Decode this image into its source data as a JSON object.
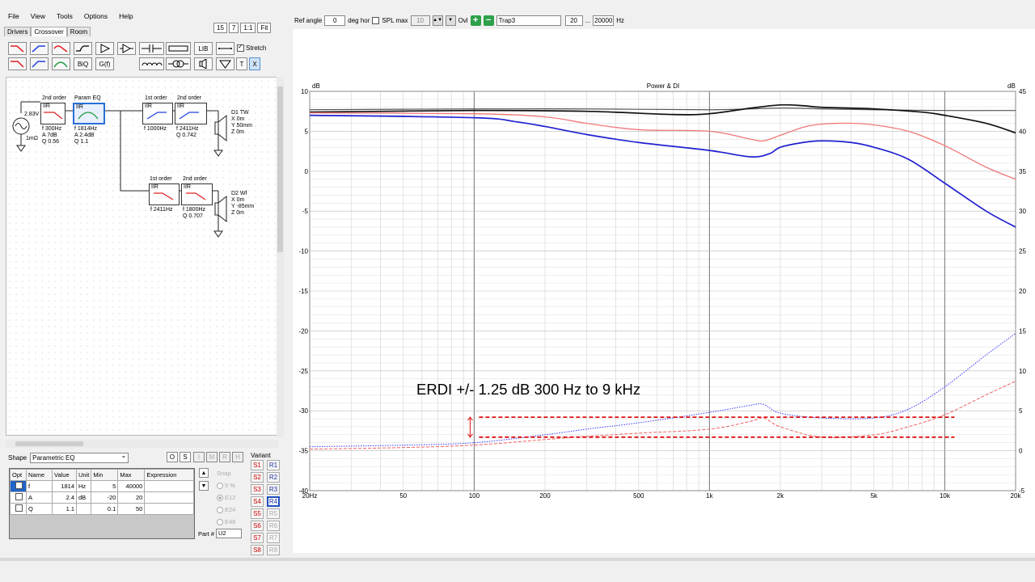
{
  "menu": [
    "File",
    "View",
    "Tools",
    "Options",
    "Help"
  ],
  "tabs": [
    "Drivers",
    "Crossover",
    "Room"
  ],
  "zoom_buttons": [
    "15",
    "7",
    "1:1",
    "Fit"
  ],
  "toolbar": {
    "lib": "LIB",
    "biq": "BiQ",
    "gf": "G(f)",
    "t": "T",
    "x": "X",
    "stretch": "Stretch"
  },
  "schematic": {
    "source": {
      "voltage": "2.83V",
      "resistance": "1mΩ"
    },
    "tw_path": [
      {
        "order": "2nd order",
        "type": "IIR",
        "params": [
          "f  300Hz",
          "A  7dB",
          "Q 0.56"
        ]
      },
      {
        "order": "Param EQ",
        "type": "IIR",
        "params": [
          "f  1814Hz",
          "A  2.4dB",
          "Q  1.1"
        ]
      },
      {
        "order": "1st order",
        "type": "IIR",
        "params": [
          "f  1000Hz"
        ]
      },
      {
        "order": "2nd order",
        "type": "IIR",
        "params": [
          "f  2411Hz",
          "Q  0.742"
        ]
      }
    ],
    "tw_driver": {
      "name": "D1 TW",
      "params": [
        "X 0m",
        "Y 50mm",
        "Z 0m"
      ]
    },
    "wf_path": [
      {
        "order": "1st order",
        "type": "IIR",
        "params": [
          "f  2411Hz"
        ]
      },
      {
        "order": "2nd order",
        "type": "IIR",
        "params": [
          "f  1800Hz",
          "Q  0.707"
        ]
      }
    ],
    "wf_driver": {
      "name": "D2 Wf",
      "params": [
        "X 0m",
        "Y -85mm",
        "Z 0m"
      ]
    }
  },
  "shape": {
    "label": "Shape",
    "value": "Parametric EQ",
    "buttons": [
      "O",
      "S",
      "I",
      "M",
      "R",
      "H"
    ]
  },
  "params_table": {
    "headers": [
      "Opt",
      "Name",
      "Value",
      "Unit",
      "Min",
      "Max",
      "Expression"
    ],
    "rows": [
      {
        "name": "f",
        "value": "1814",
        "unit": "Hz",
        "min": "5",
        "max": "40000",
        "expr": ""
      },
      {
        "name": "A",
        "value": "2.4",
        "unit": "dB",
        "min": "-20",
        "max": "20",
        "expr": ""
      },
      {
        "name": "Q",
        "value": "1.1",
        "unit": "",
        "min": "0.1",
        "max": "50",
        "expr": ""
      }
    ]
  },
  "snap": {
    "label": "Snap",
    "options": [
      "5 %",
      "E12",
      "E24",
      "E48"
    ]
  },
  "part": {
    "label": "Part #",
    "value": "U2"
  },
  "variant": {
    "label": "Variant",
    "s": [
      "S1",
      "S2",
      "S3",
      "S4",
      "S5",
      "S6",
      "S7",
      "S8"
    ],
    "r": [
      "R1",
      "R2",
      "R3",
      "R4",
      "R5",
      "R6",
      "R7",
      "R8"
    ]
  },
  "topbar": {
    "ref_angle_label": "Ref angle",
    "ref_angle": "0",
    "deg_hor": "deg hor",
    "spl_max": "SPL max",
    "spl_val": "10",
    "ovl": "Ovl",
    "trace_name": "Trap3",
    "f_min": "20",
    "dots": "...",
    "f_max": "20000",
    "hz": "Hz"
  },
  "colors": {
    "blue": "#2020d0",
    "red": "#f07878",
    "black": "#101010",
    "gray": "#555555",
    "annot": "#dd1111"
  },
  "chart_data": {
    "type": "line",
    "title": "Power & DI",
    "ylabel_left": "dB",
    "ylabel_right": "dB",
    "x_scale": "log",
    "xlim": [
      20,
      20000
    ],
    "ylim_left": [
      -40,
      10
    ],
    "ylim_right": [
      -5,
      45
    ],
    "x_ticks": [
      "20Hz",
      "50",
      "100",
      "200",
      "500",
      "1k",
      "2k",
      "5k",
      "10k",
      "20k"
    ],
    "x_tick_values": [
      20,
      50,
      100,
      200,
      500,
      1000,
      2000,
      5000,
      10000,
      20000
    ],
    "y_ticks_left": [
      10,
      5,
      0,
      -5,
      -10,
      -15,
      -20,
      -25,
      -30,
      -35,
      -40
    ],
    "y_ticks_right": [
      45,
      40,
      35,
      30,
      25,
      20,
      15,
      10,
      5,
      0,
      -5
    ],
    "grid": true,
    "annotation": "ERDI +/- 1.25 dB  300 Hz to 9 kHz",
    "band": {
      "y_upper": -30.8,
      "y_lower": -33.3,
      "x_from": 100,
      "x_to": 11000
    },
    "series": [
      {
        "name": "",
        "color": "#555555",
        "style": "solid",
        "width": 1.2,
        "axis": "left",
        "x": [
          20,
          100,
          300,
          1000,
          2000,
          3000,
          5000,
          10000,
          20000
        ],
        "y": [
          7.7,
          7.8,
          7.8,
          7.7,
          7.9,
          7.8,
          7.7,
          7.6,
          7.6
        ]
      },
      {
        "name": "",
        "color": "#101010",
        "style": "solid",
        "width": 1.7,
        "axis": "left",
        "x": [
          20,
          100,
          300,
          700,
          1000,
          1500,
          2000,
          2500,
          3000,
          5000,
          8000,
          10000,
          15000,
          20000
        ],
        "y": [
          7.4,
          7.6,
          7.5,
          7.1,
          7.2,
          7.9,
          8.3,
          8.2,
          8.0,
          7.8,
          7.4,
          7.0,
          6.0,
          4.8
        ]
      },
      {
        "name": "",
        "color": "#f07878",
        "style": "solid",
        "width": 1.3,
        "axis": "left",
        "x": [
          20,
          100,
          200,
          300,
          500,
          1000,
          1500,
          1700,
          2000,
          2500,
          3000,
          4000,
          5000,
          7000,
          10000,
          15000,
          20000
        ],
        "y": [
          7.3,
          7.2,
          6.8,
          6.0,
          5.2,
          5.0,
          4.0,
          3.8,
          4.5,
          5.5,
          5.9,
          6.0,
          5.8,
          5.0,
          3.2,
          0.5,
          -1.0
        ]
      },
      {
        "name": "",
        "color": "#2020d0",
        "style": "solid",
        "width": 1.7,
        "axis": "left",
        "x": [
          20,
          100,
          150,
          200,
          300,
          500,
          1000,
          1500,
          1800,
          2000,
          2500,
          3000,
          4000,
          5000,
          7000,
          10000,
          15000,
          20000
        ],
        "y": [
          7.0,
          6.7,
          6.2,
          5.6,
          4.6,
          3.6,
          2.6,
          1.8,
          2.2,
          3.0,
          3.6,
          3.8,
          3.6,
          3.0,
          1.5,
          -1.5,
          -5.0,
          -7.0
        ]
      },
      {
        "name": "",
        "color": "#3a3aff",
        "style": "dotted",
        "width": 1.0,
        "axis": "left",
        "x": [
          20,
          50,
          100,
          200,
          300,
          500,
          1000,
          1500,
          1700,
          2000,
          3000,
          5000,
          7000,
          10000,
          15000,
          20000
        ],
        "y": [
          -34.5,
          -34.3,
          -34.0,
          -33.0,
          -32.3,
          -31.5,
          -30.2,
          -29.3,
          -29.2,
          -30.3,
          -30.9,
          -30.9,
          -29.8,
          -27.0,
          -23.0,
          -20.3
        ]
      },
      {
        "name": "",
        "color": "#f06060",
        "style": "dashed",
        "width": 1.0,
        "axis": "left",
        "x": [
          20,
          50,
          100,
          200,
          300,
          500,
          1000,
          1500,
          1700,
          2000,
          3000,
          5000,
          7000,
          10000,
          15000,
          20000
        ],
        "y": [
          -34.8,
          -34.6,
          -34.3,
          -33.6,
          -33.2,
          -32.8,
          -32.3,
          -31.3,
          -30.9,
          -32.0,
          -33.3,
          -33.0,
          -32.0,
          -30.5,
          -28.0,
          -26.3
        ]
      }
    ]
  }
}
